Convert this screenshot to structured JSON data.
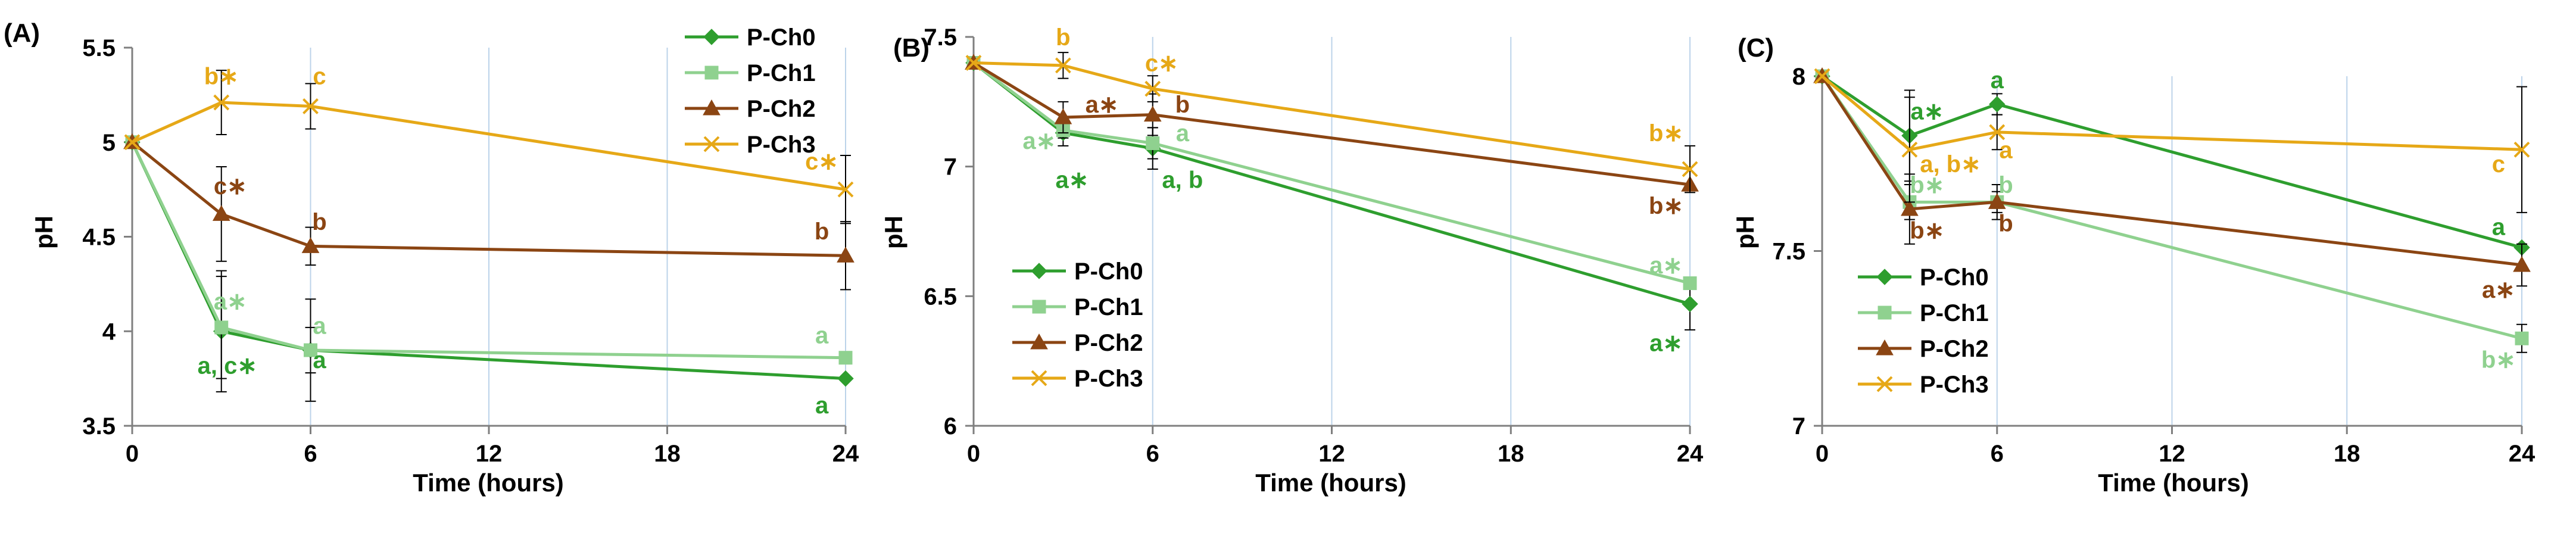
{
  "chart_data": [
    {
      "type": "line",
      "panel_label": "(A)",
      "xlabel": "Time (hours)",
      "ylabel": "pH",
      "xlim": [
        0,
        24
      ],
      "ylim": [
        3.5,
        5.5
      ],
      "xticks": [
        0,
        6,
        12,
        18,
        24
      ],
      "yticks": [
        3.5,
        4,
        4.5,
        5,
        5.5
      ],
      "ytick_labels": [
        "3.5",
        "4",
        "4.5",
        "5",
        "5.5"
      ],
      "grid": "vertical",
      "legend_position": "top-right",
      "x": [
        0,
        3,
        6,
        24
      ],
      "series": [
        {
          "name": "P-Ch0",
          "color": "#2e9e2e",
          "marker": "diamond",
          "values": [
            5.0,
            4.0,
            3.9,
            3.75
          ],
          "errors": [
            0,
            0.32,
            0.27,
            0
          ]
        },
        {
          "name": "P-Ch1",
          "color": "#8fd18f",
          "marker": "square",
          "values": [
            5.0,
            4.02,
            3.9,
            3.86
          ],
          "errors": [
            0,
            0.27,
            0.12,
            0
          ]
        },
        {
          "name": "P-Ch2",
          "color": "#8b4513",
          "marker": "triangle",
          "values": [
            5.0,
            4.62,
            4.45,
            4.4
          ],
          "errors": [
            0,
            0.25,
            0.1,
            0.18
          ]
        },
        {
          "name": "P-Ch3",
          "color": "#e6a817",
          "marker": "x",
          "values": [
            5.0,
            5.21,
            5.19,
            4.75
          ],
          "errors": [
            0,
            0.17,
            0.12,
            0.18
          ]
        }
      ],
      "annotations": [
        {
          "text": "b∗",
          "x": 3,
          "y": 5.35,
          "color": "#e6a817"
        },
        {
          "text": "c",
          "x": 6.3,
          "y": 5.35,
          "color": "#e6a817"
        },
        {
          "text": "c∗",
          "x": 23.2,
          "y": 4.9,
          "color": "#e6a817"
        },
        {
          "text": "c∗",
          "x": 3.3,
          "y": 4.77,
          "color": "#8b4513"
        },
        {
          "text": "b",
          "x": 6.3,
          "y": 4.58,
          "color": "#8b4513"
        },
        {
          "text": "b",
          "x": 23.2,
          "y": 4.53,
          "color": "#8b4513"
        },
        {
          "text": "a∗",
          "x": 3.3,
          "y": 4.16,
          "color": "#8fd18f"
        },
        {
          "text": "a",
          "x": 6.3,
          "y": 4.03,
          "color": "#8fd18f"
        },
        {
          "text": "a",
          "x": 23.2,
          "y": 3.98,
          "color": "#8fd18f"
        },
        {
          "text": "a, c∗",
          "x": 3.2,
          "y": 3.82,
          "color": "#2e9e2e"
        },
        {
          "text": "a",
          "x": 6.3,
          "y": 3.85,
          "color": "#2e9e2e"
        },
        {
          "text": "a",
          "x": 23.2,
          "y": 3.61,
          "color": "#2e9e2e"
        }
      ]
    },
    {
      "type": "line",
      "panel_label": "(B)",
      "xlabel": "Time (hours)",
      "ylabel": "pH",
      "xlim": [
        0,
        24
      ],
      "ylim": [
        6,
        7.5
      ],
      "xticks": [
        0,
        6,
        12,
        18,
        24
      ],
      "yticks": [
        6,
        6.5,
        7,
        7.5
      ],
      "ytick_labels": [
        "6",
        "6.5",
        "7",
        "7.5"
      ],
      "grid": "vertical",
      "legend_position": "bottom-left",
      "x": [
        0,
        3,
        6,
        24
      ],
      "series": [
        {
          "name": "P-Ch0",
          "color": "#2e9e2e",
          "marker": "diamond",
          "values": [
            7.4,
            7.13,
            7.07,
            6.47
          ],
          "errors": [
            0,
            0.05,
            0.08,
            0.1
          ]
        },
        {
          "name": "P-Ch1",
          "color": "#8fd18f",
          "marker": "square",
          "values": [
            7.4,
            7.14,
            7.09,
            6.55
          ],
          "errors": [
            0,
            0.03,
            0.06,
            0
          ]
        },
        {
          "name": "P-Ch2",
          "color": "#8b4513",
          "marker": "triangle",
          "values": [
            7.4,
            7.19,
            7.2,
            6.93
          ],
          "errors": [
            0,
            0.06,
            0.08,
            0
          ]
        },
        {
          "name": "P-Ch3",
          "color": "#e6a817",
          "marker": "x",
          "values": [
            7.4,
            7.39,
            7.3,
            6.99
          ],
          "errors": [
            0,
            0.05,
            0.05,
            0.09
          ]
        }
      ],
      "annotations": [
        {
          "text": "b",
          "x": 3,
          "y": 7.5,
          "color": "#e6a817"
        },
        {
          "text": "c∗",
          "x": 6.3,
          "y": 7.4,
          "color": "#e6a817"
        },
        {
          "text": "b∗",
          "x": 23.2,
          "y": 7.13,
          "color": "#e6a817"
        },
        {
          "text": "a∗",
          "x": 4.3,
          "y": 7.24,
          "color": "#8b4513"
        },
        {
          "text": "b",
          "x": 7.0,
          "y": 7.24,
          "color": "#8b4513"
        },
        {
          "text": "b∗",
          "x": 23.2,
          "y": 6.85,
          "color": "#8b4513"
        },
        {
          "text": "a∗",
          "x": 2.2,
          "y": 7.1,
          "color": "#8fd18f"
        },
        {
          "text": "a",
          "x": 7.0,
          "y": 7.13,
          "color": "#8fd18f"
        },
        {
          "text": "a∗",
          "x": 23.2,
          "y": 6.62,
          "color": "#8fd18f"
        },
        {
          "text": "a∗",
          "x": 3.3,
          "y": 6.95,
          "color": "#2e9e2e"
        },
        {
          "text": "a, b",
          "x": 7.0,
          "y": 6.95,
          "color": "#2e9e2e"
        },
        {
          "text": "a∗",
          "x": 23.2,
          "y": 6.32,
          "color": "#2e9e2e"
        }
      ]
    },
    {
      "type": "line",
      "panel_label": "(C)",
      "xlabel": "Time (hours)",
      "ylabel": "pH",
      "xlim": [
        0,
        24
      ],
      "ylim": [
        7,
        8
      ],
      "xticks": [
        0,
        6,
        12,
        18,
        24
      ],
      "yticks": [
        7,
        7.5,
        8
      ],
      "ytick_labels": [
        "7",
        "7.5",
        "8"
      ],
      "grid": "vertical",
      "legend_position": "bottom-left",
      "x": [
        0,
        3,
        6,
        24
      ],
      "series": [
        {
          "name": "P-Ch0",
          "color": "#2e9e2e",
          "marker": "diamond",
          "values": [
            8.0,
            7.83,
            7.92,
            7.51
          ],
          "errors": [
            0,
            0.13,
            0.03,
            0
          ]
        },
        {
          "name": "P-Ch1",
          "color": "#8fd18f",
          "marker": "square",
          "values": [
            8.0,
            7.64,
            7.64,
            7.25
          ],
          "errors": [
            0,
            0.05,
            0.03,
            0.04
          ]
        },
        {
          "name": "P-Ch2",
          "color": "#8b4513",
          "marker": "triangle",
          "values": [
            8.0,
            7.62,
            7.64,
            7.46
          ],
          "errors": [
            0,
            0.1,
            0.05,
            0.06
          ]
        },
        {
          "name": "P-Ch3",
          "color": "#e6a817",
          "marker": "x",
          "values": [
            8.0,
            7.79,
            7.84,
            7.79
          ],
          "errors": [
            0,
            0.15,
            0.05,
            0.18
          ]
        }
      ],
      "annotations": [
        {
          "text": "a∗",
          "x": 3.6,
          "y": 7.9,
          "color": "#2e9e2e"
        },
        {
          "text": "a",
          "x": 6.0,
          "y": 7.99,
          "color": "#2e9e2e"
        },
        {
          "text": "a",
          "x": 23.2,
          "y": 7.57,
          "color": "#2e9e2e"
        },
        {
          "text": "a, b∗",
          "x": 4.4,
          "y": 7.75,
          "color": "#e6a817"
        },
        {
          "text": "a",
          "x": 6.3,
          "y": 7.79,
          "color": "#e6a817"
        },
        {
          "text": "c",
          "x": 23.2,
          "y": 7.75,
          "color": "#e6a817"
        },
        {
          "text": "b∗",
          "x": 3.6,
          "y": 7.69,
          "color": "#8fd18f"
        },
        {
          "text": "b",
          "x": 6.3,
          "y": 7.69,
          "color": "#8fd18f"
        },
        {
          "text": "b∗",
          "x": 23.2,
          "y": 7.19,
          "color": "#8fd18f"
        },
        {
          "text": "b∗",
          "x": 3.6,
          "y": 7.56,
          "color": "#8b4513"
        },
        {
          "text": "b",
          "x": 6.3,
          "y": 7.58,
          "color": "#8b4513"
        },
        {
          "text": "a∗",
          "x": 23.2,
          "y": 7.39,
          "color": "#8b4513"
        }
      ]
    }
  ]
}
